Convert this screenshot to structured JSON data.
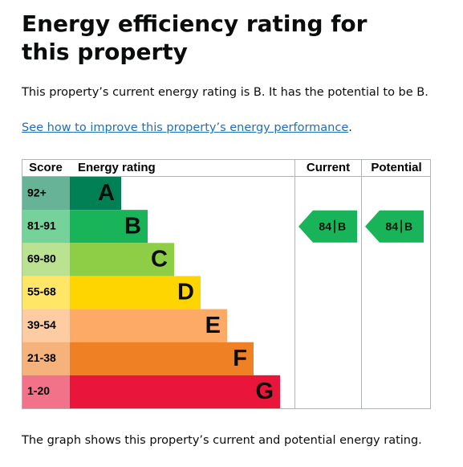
{
  "header": {
    "title": "Energy efficiency rating for this property"
  },
  "summary": "This property’s current energy rating is B. It has the potential to be B.",
  "link": {
    "text": "See how to improve this property’s energy performance",
    "suffix": "."
  },
  "table": {
    "columns": [
      "Score",
      "Energy rating",
      "Current",
      "Potential"
    ],
    "bands": [
      {
        "score": "92+",
        "rating": "A",
        "color": "#008054"
      },
      {
        "score": "81-91",
        "rating": "B",
        "color": "#19b459"
      },
      {
        "score": "69-80",
        "rating": "C",
        "color": "#8dce46"
      },
      {
        "score": "55-68",
        "rating": "D",
        "color": "#ffd500"
      },
      {
        "score": "39-54",
        "rating": "E",
        "color": "#fcaa65"
      },
      {
        "score": "21-38",
        "rating": "F",
        "color": "#ef8023"
      },
      {
        "score": "1-20",
        "rating": "G",
        "color": "#e9153b"
      }
    ],
    "current": {
      "score": "84",
      "rating": "B"
    },
    "potential": {
      "score": "84",
      "rating": "B"
    }
  },
  "footer": "The graph shows this property’s current and potential energy rating."
}
